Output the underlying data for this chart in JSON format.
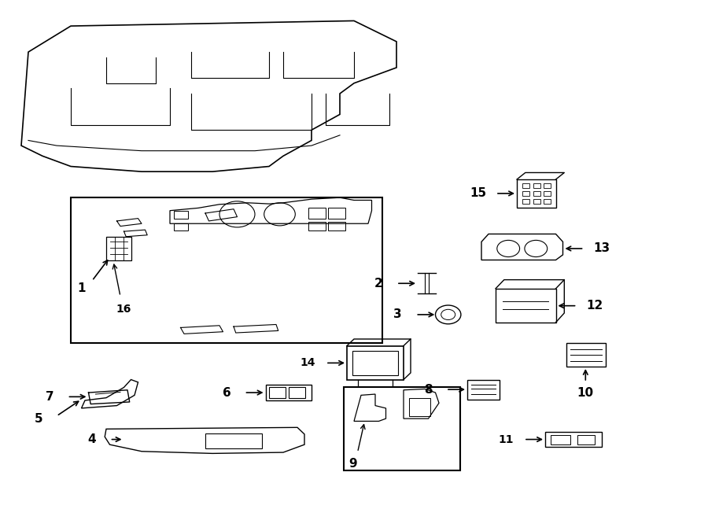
{
  "bg_color": "#ffffff",
  "line_color": "#000000",
  "line_width": 1.2,
  "fig_width": 9.0,
  "fig_height": 6.61
}
